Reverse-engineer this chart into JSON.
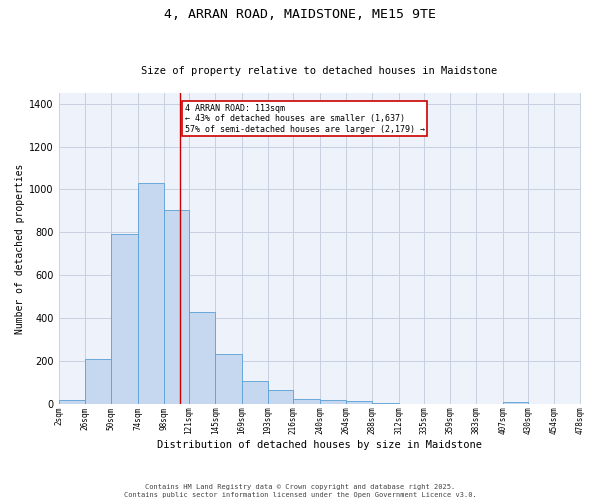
{
  "title1": "4, ARRAN ROAD, MAIDSTONE, ME15 9TE",
  "title2": "Size of property relative to detached houses in Maidstone",
  "xlabel": "Distribution of detached houses by size in Maidstone",
  "ylabel": "Number of detached properties",
  "bar_edges": [
    2,
    26,
    50,
    74,
    98,
    121,
    145,
    169,
    193,
    216,
    240,
    264,
    288,
    312,
    335,
    359,
    383,
    407,
    430,
    454,
    478
  ],
  "bar_heights": [
    20,
    210,
    790,
    1030,
    905,
    430,
    235,
    105,
    65,
    25,
    20,
    15,
    5,
    0,
    0,
    0,
    0,
    10,
    0,
    0
  ],
  "tick_labels": [
    "2sqm",
    "26sqm",
    "50sqm",
    "74sqm",
    "98sqm",
    "121sqm",
    "145sqm",
    "169sqm",
    "193sqm",
    "216sqm",
    "240sqm",
    "264sqm",
    "288sqm",
    "312sqm",
    "335sqm",
    "359sqm",
    "383sqm",
    "407sqm",
    "430sqm",
    "454sqm",
    "478sqm"
  ],
  "bar_color": "#c5d8f0",
  "bar_edge_color": "#5a9fd4",
  "grid_color": "#c8d0e0",
  "bg_color": "#eef2fa",
  "vline_x": 113,
  "vline_color": "#cc0000",
  "annotation_title": "4 ARRAN ROAD: 113sqm",
  "annotation_line1": "← 43% of detached houses are smaller (1,637)",
  "annotation_line2": "57% of semi-detached houses are larger (2,179) →",
  "annotation_box_color": "#cc0000",
  "footer1": "Contains HM Land Registry data © Crown copyright and database right 2025.",
  "footer2": "Contains public sector information licensed under the Open Government Licence v3.0.",
  "ylim": [
    0,
    1450
  ]
}
